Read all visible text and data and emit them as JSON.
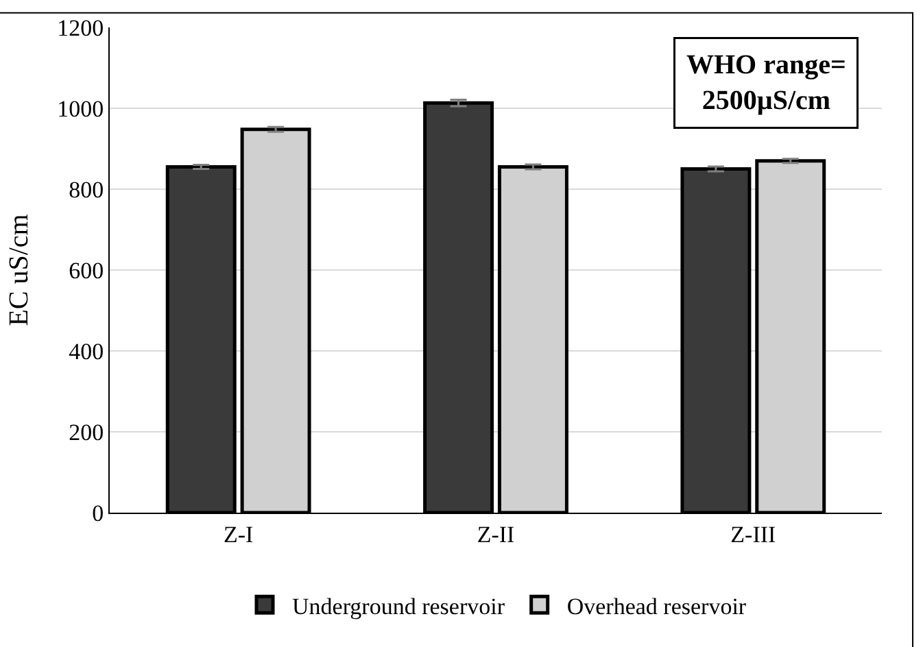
{
  "chart_data": {
    "type": "bar",
    "ylabel": "EC uS/cm",
    "categories": [
      "Z-I",
      "Z-II",
      "Z-III"
    ],
    "series": [
      {
        "name": "Underground reservoir",
        "color": "#3a3a3a",
        "values": [
          855,
          1013,
          850
        ],
        "errors": [
          5,
          8,
          6
        ]
      },
      {
        "name": "Overhead reservoir",
        "color": "#d0d0d0",
        "values": [
          948,
          855,
          870
        ],
        "errors": [
          6,
          6,
          5
        ]
      }
    ],
    "ylim": [
      0,
      1200
    ],
    "yticks": [
      0,
      200,
      400,
      600,
      800,
      1000,
      1200
    ],
    "grid": "y",
    "legend": "bottom",
    "annotations": [
      "WHO range=\n2500µS/cm"
    ]
  }
}
